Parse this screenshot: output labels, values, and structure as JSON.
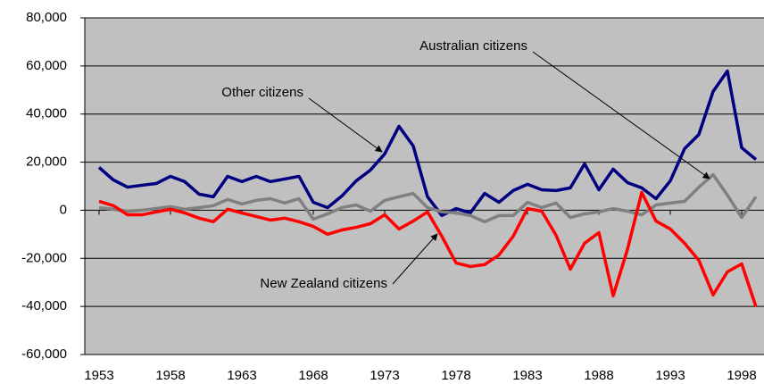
{
  "chart_data": {
    "type": "line",
    "x": [
      1953,
      1954,
      1955,
      1956,
      1957,
      1958,
      1959,
      1960,
      1961,
      1962,
      1963,
      1964,
      1965,
      1966,
      1967,
      1968,
      1969,
      1970,
      1971,
      1972,
      1973,
      1974,
      1975,
      1976,
      1977,
      1978,
      1979,
      1980,
      1981,
      1982,
      1983,
      1984,
      1985,
      1986,
      1987,
      1988,
      1989,
      1990,
      1991,
      1992,
      1993,
      1994,
      1995,
      1996,
      1997,
      1998,
      1999
    ],
    "series": [
      {
        "name": "Other citizens",
        "color": "#000080",
        "values": [
          17800,
          12600,
          9600,
          10400,
          11100,
          14100,
          11900,
          6700,
          5600,
          14100,
          11900,
          14100,
          11900,
          13000,
          14100,
          3300,
          1100,
          5900,
          12200,
          16700,
          23400,
          34900,
          26700,
          5600,
          -2200,
          700,
          -1100,
          7000,
          3300,
          8200,
          10800,
          8500,
          8200,
          9300,
          19300,
          8500,
          17100,
          11500,
          9300,
          4800,
          12200,
          25600,
          31500,
          49400,
          57900,
          26000,
          21100
        ]
      },
      {
        "name": "Australian citizens",
        "color": "#808080",
        "values": [
          1100,
          400,
          -400,
          0,
          700,
          1500,
          400,
          1100,
          1900,
          4500,
          2600,
          4100,
          4800,
          3000,
          4800,
          -3700,
          -1500,
          1100,
          2200,
          -400,
          4100,
          5600,
          7000,
          1100,
          -700,
          -1100,
          -2200,
          -4800,
          -2200,
          -2200,
          3300,
          1100,
          3000,
          -3000,
          -1500,
          -700,
          700,
          -400,
          -1900,
          2200,
          3000,
          3700,
          9600,
          14800,
          6300,
          -3000,
          5600
        ]
      },
      {
        "name": "New Zealand citizens",
        "color": "#ff0000",
        "values": [
          3700,
          1900,
          -1900,
          -1900,
          -700,
          400,
          -1100,
          -3300,
          -4800,
          400,
          -1100,
          -2600,
          -4100,
          -3300,
          -4800,
          -6700,
          -10000,
          -8200,
          -7100,
          -5600,
          -1900,
          -7800,
          -4500,
          -700,
          -10800,
          -21900,
          -23400,
          -22600,
          -18600,
          -10800,
          700,
          -400,
          -10400,
          -24500,
          -13700,
          -9300,
          -35600,
          -16300,
          7400,
          -4500,
          -7800,
          -13700,
          -20800,
          -35200,
          -25600,
          -22300,
          -40100
        ]
      }
    ],
    "xlim": [
      1952,
      1999.5
    ],
    "xticks": [
      1953,
      1958,
      1963,
      1968,
      1973,
      1978,
      1983,
      1988,
      1993,
      1998
    ],
    "ylim": [
      -60000,
      80000
    ],
    "yticks": [
      {
        "value": -60000,
        "label": "-60,000"
      },
      {
        "value": -40000,
        "label": "-40,000"
      },
      {
        "value": -20000,
        "label": "-20,000"
      },
      0,
      {
        "value": 20000,
        "label": "20,000"
      },
      {
        "value": 40000,
        "label": "40,000"
      },
      {
        "value": 60000,
        "label": "60,000"
      },
      {
        "value": 80000,
        "label": "80,000"
      }
    ],
    "grid": true,
    "background": "#c0c0c0"
  }
}
